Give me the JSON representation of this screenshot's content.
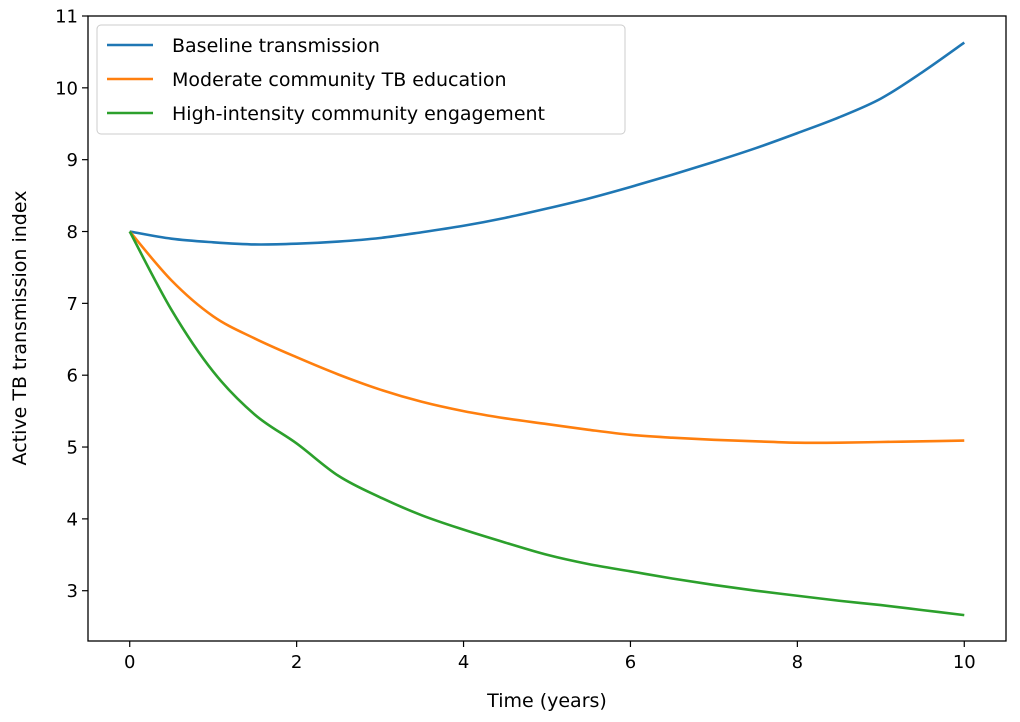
{
  "chart_data": {
    "type": "line",
    "title": "",
    "xlabel": "Time (years)",
    "ylabel": "Active TB transmission index",
    "xlim": [
      -0.5,
      10.5
    ],
    "ylim": [
      2.3,
      11.0
    ],
    "xticks": [
      0,
      2,
      4,
      6,
      8,
      10
    ],
    "yticks": [
      3,
      4,
      5,
      6,
      7,
      8,
      9,
      10,
      11
    ],
    "grid": false,
    "legend_position": "upper-left",
    "x": [
      0,
      0.5,
      1,
      1.5,
      2,
      2.5,
      3,
      3.5,
      4,
      4.5,
      5,
      5.5,
      6,
      6.5,
      7,
      7.5,
      8,
      8.5,
      9,
      9.5,
      10
    ],
    "series": [
      {
        "name": "Baseline transmission",
        "color": "#1f77b4",
        "values": [
          8.0,
          7.9,
          7.85,
          7.82,
          7.83,
          7.86,
          7.91,
          7.99,
          8.08,
          8.19,
          8.32,
          8.46,
          8.62,
          8.79,
          8.97,
          9.16,
          9.37,
          9.59,
          9.85,
          10.22,
          10.63
        ]
      },
      {
        "name": "Moderate community TB education",
        "color": "#ff7f0e",
        "values": [
          8.0,
          7.32,
          6.82,
          6.51,
          6.25,
          6.01,
          5.8,
          5.63,
          5.5,
          5.4,
          5.32,
          5.24,
          5.17,
          5.13,
          5.1,
          5.08,
          5.06,
          5.06,
          5.07,
          5.08,
          5.09
        ]
      },
      {
        "name": "High-intensity community engagement",
        "color": "#2ca02c",
        "values": [
          8.0,
          6.91,
          6.05,
          5.45,
          5.05,
          4.6,
          4.3,
          4.05,
          3.85,
          3.67,
          3.5,
          3.37,
          3.27,
          3.17,
          3.08,
          3.0,
          2.93,
          2.86,
          2.8,
          2.73,
          2.66
        ]
      }
    ]
  }
}
